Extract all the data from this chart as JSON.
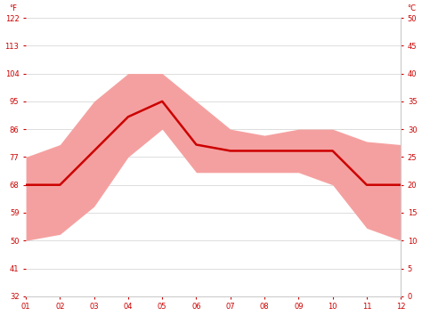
{
  "months": [
    1,
    2,
    3,
    4,
    5,
    6,
    7,
    8,
    9,
    10,
    11,
    12
  ],
  "month_labels": [
    "01",
    "02",
    "03",
    "04",
    "05",
    "06",
    "07",
    "08",
    "09",
    "10",
    "11",
    "12"
  ],
  "mean_temp_f": [
    68,
    68,
    79,
    90,
    95,
    81,
    79,
    79,
    79,
    79,
    68,
    68
  ],
  "max_temp_f": [
    77,
    81,
    95,
    104,
    104,
    95,
    86,
    84,
    86,
    86,
    82,
    81
  ],
  "min_temp_f": [
    50,
    52,
    61,
    77,
    86,
    72,
    72,
    72,
    72,
    68,
    54,
    50
  ],
  "ylim_f": [
    32,
    122
  ],
  "yticks_f": [
    32,
    41,
    50,
    59,
    68,
    77,
    86,
    95,
    104,
    113,
    122
  ],
  "yticks_c": [
    0,
    5,
    10,
    15,
    20,
    25,
    30,
    35,
    40,
    45,
    50
  ],
  "line_color": "#cc0000",
  "band_color": "#f5a0a0",
  "grid_color": "#d0d0d0",
  "background_color": "#ffffff",
  "tick_color": "#cc0000",
  "spine_color": "#cccccc",
  "label_f": "°F",
  "label_c": "°C"
}
